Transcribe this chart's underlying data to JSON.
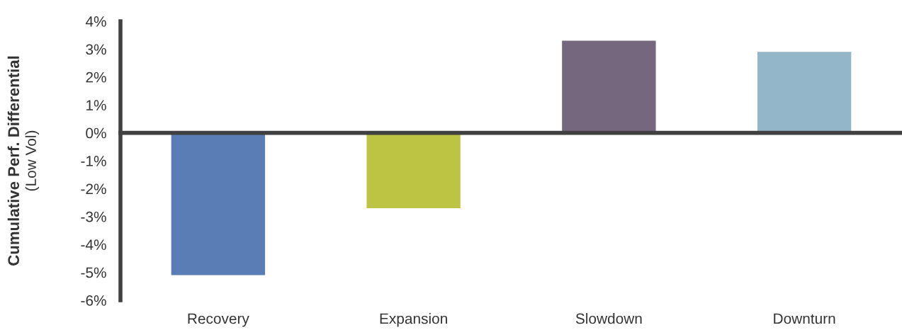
{
  "chart_data": {
    "type": "bar",
    "ylabel": "Cumulative Perf. Differential\n(Low Vol)",
    "categories": [
      "Recovery",
      "Expansion",
      "Slowdown",
      "Downturn"
    ],
    "values": [
      -5.1,
      -2.7,
      3.3,
      2.9
    ],
    "colors": [
      "#5b7db5",
      "#bdc443",
      "#74677e",
      "#94b6c9"
    ],
    "ylim": [
      -6,
      4
    ],
    "yticks": [
      {
        "value": -6,
        "label": "-6%"
      },
      {
        "value": -5,
        "label": "-5%"
      },
      {
        "value": -4,
        "label": "-4%"
      },
      {
        "value": -3,
        "label": "-3%"
      },
      {
        "value": -2,
        "label": "-2%"
      },
      {
        "value": -1,
        "label": "-1%"
      },
      {
        "value": 0,
        "label": "0%"
      },
      {
        "value": 1,
        "label": "1%"
      },
      {
        "value": 2,
        "label": "2%"
      },
      {
        "value": 3,
        "label": "3%"
      },
      {
        "value": 4,
        "label": "4%"
      }
    ],
    "legend": false
  }
}
